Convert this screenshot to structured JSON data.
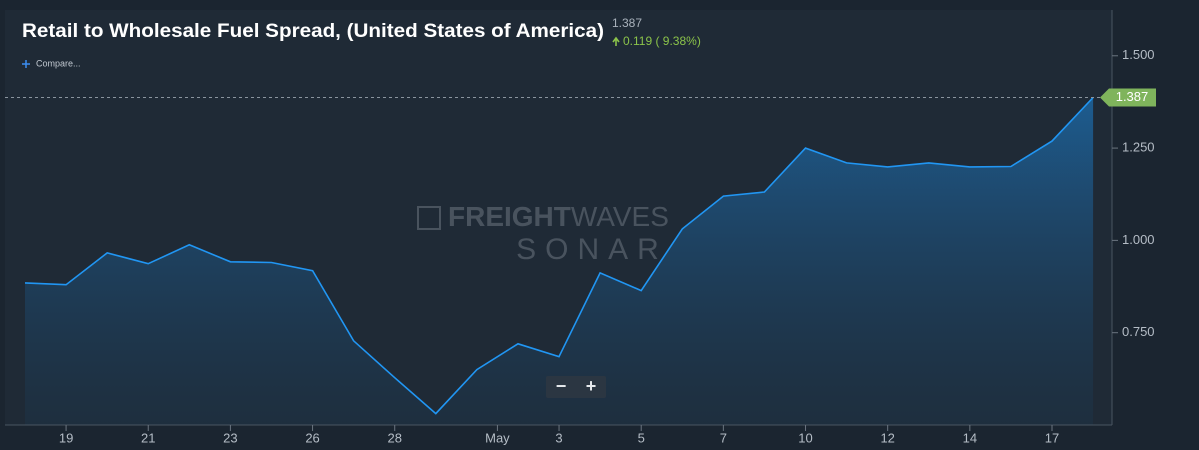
{
  "chart_data": {
    "type": "area",
    "title": "Retail to Wholesale Fuel Spread, (United States of America)",
    "last_value_text": "1.387",
    "change_text": "0.119 ( 9.38%)",
    "compare_text": "Compare...",
    "watermark": {
      "brand_bold": "FREIGHT",
      "brand_light": "WAVES",
      "product": "SONAR"
    },
    "zoom_buttons": [
      "−",
      "+"
    ],
    "month_label": "May",
    "categories": [
      null,
      "19",
      null,
      "21",
      null,
      "23",
      null,
      "26",
      null,
      "28",
      null,
      null,
      null,
      "3",
      null,
      "5",
      null,
      "7",
      null,
      "10",
      null,
      "12",
      null,
      "14",
      null,
      "17",
      null
    ],
    "series": [
      {
        "name": "Retail to Wholesale Fuel Spread",
        "color": "#2196f3",
        "values": [
          0.885,
          0.88,
          0.966,
          0.937,
          0.988,
          0.942,
          0.94,
          0.918,
          0.728,
          0.628,
          0.531,
          0.65,
          0.72,
          0.685,
          0.912,
          0.864,
          1.031,
          1.12,
          1.131,
          1.25,
          1.21,
          1.199,
          1.21,
          1.199,
          1.2,
          1.269,
          1.387
        ]
      }
    ],
    "ylim": [
      0.5,
      1.624
    ],
    "yticks": [
      {
        "value": 0.75,
        "label": "0.750"
      },
      {
        "value": 1.0,
        "label": "1.000"
      },
      {
        "value": 1.25,
        "label": "1.250"
      },
      {
        "value": 1.5,
        "label": "1.500"
      }
    ],
    "grid": false
  }
}
